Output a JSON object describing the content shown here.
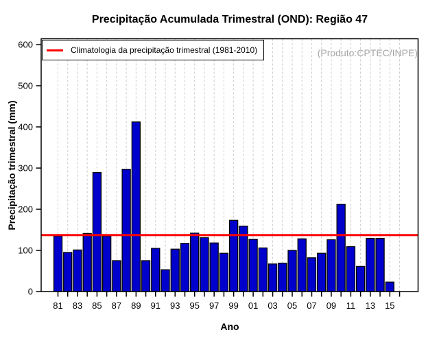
{
  "title": "Precipitação Acumulada Trimestral (OND): Região 47",
  "legend": {
    "label": "Climatologia da precipitação trimestral (1981-2010)",
    "line_color": "#ff0000"
  },
  "annotation": {
    "produto": "(Produto:CPTEC/INPE)",
    "color": "#a6a6a6"
  },
  "axes": {
    "x_label": "Ano",
    "y_label": "Precipitação trimestral (mm)"
  },
  "chart_data": {
    "type": "bar",
    "title": "Precipitação Acumulada Trimestral (OND): Região 47",
    "xlabel": "Ano",
    "ylabel": "Precipitação trimestral (mm)",
    "ylim": [
      0,
      600
    ],
    "y_ticks": [
      0,
      100,
      200,
      300,
      400,
      500,
      600
    ],
    "categories": [
      "81",
      "82",
      "83",
      "84",
      "85",
      "86",
      "87",
      "88",
      "89",
      "90",
      "91",
      "92",
      "93",
      "94",
      "95",
      "96",
      "97",
      "98",
      "99",
      "00",
      "01",
      "02",
      "03",
      "04",
      "05",
      "06",
      "07",
      "08",
      "09",
      "10",
      "11",
      "12",
      "13",
      "14",
      "15"
    ],
    "values": [
      135,
      95,
      101,
      141,
      289,
      135,
      75,
      297,
      412,
      75,
      105,
      53,
      103,
      117,
      142,
      131,
      118,
      93,
      173,
      159,
      127,
      106,
      67,
      69,
      100,
      128,
      82,
      93,
      126,
      212,
      109,
      61,
      129,
      129,
      23
    ],
    "labeled_categories": [
      "81",
      "83",
      "85",
      "87",
      "89",
      "91",
      "93",
      "95",
      "97",
      "99",
      "01",
      "03",
      "05",
      "07",
      "09",
      "11",
      "13",
      "15"
    ],
    "extra_unlabeled_tick": "16",
    "climatology_value": 137,
    "bar_color": "#0000cd",
    "bar_border_color": "#000000",
    "climatology_line_color": "#ff0000",
    "grid": "vertical-dashed",
    "grid_color": "#c9c9c9",
    "legend_position": "top-left",
    "legend_entries": [
      "Climatologia da precipitação trimestral (1981-2010)"
    ]
  }
}
